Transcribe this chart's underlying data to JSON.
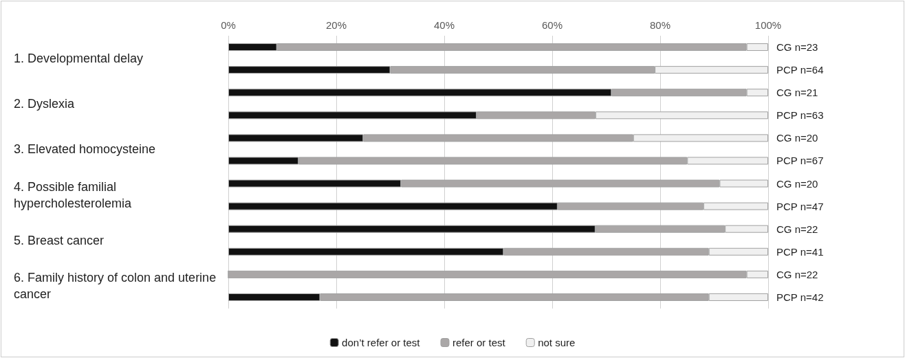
{
  "chart_data": {
    "type": "bar",
    "orientation": "horizontal",
    "stacked": true,
    "categories": [
      "CG n=23",
      "PCP n=64",
      "CG n=21",
      "PCP n=63",
      "CG n=20",
      "PCP n=67",
      "CG n=20",
      "PCP n=47",
      "CG n=22",
      "PCP n=41",
      "CG n=22",
      "PCP n=42"
    ],
    "series": [
      {
        "name": "don’t refer or test",
        "color": "#111111",
        "values": [
          9,
          30,
          71,
          46,
          25,
          13,
          32,
          61,
          68,
          51,
          0,
          17
        ]
      },
      {
        "name": "refer or test",
        "color": "#aaa7a7",
        "values": [
          87,
          49,
          25,
          22,
          50,
          72,
          59,
          27,
          24,
          38,
          96,
          72
        ]
      },
      {
        "name": "not sure",
        "color": "#f0f0f0",
        "values": [
          4,
          21,
          4,
          32,
          25,
          15,
          9,
          12,
          8,
          11,
          4,
          11
        ]
      }
    ],
    "annotations": [
      "1. Developmental delay",
      "2. Dyslexia",
      "3. Elevated homocysteine",
      "4. Possible familial hypercholesterolemia",
      "5. Breast cancer",
      "6. Family history of colon and uterine cancer"
    ],
    "xlim": [
      0,
      100
    ],
    "xticks": [
      {
        "value": 0,
        "label": "0%"
      },
      {
        "value": 20,
        "label": "20%"
      },
      {
        "value": 40,
        "label": "40%"
      },
      {
        "value": 60,
        "label": "60%"
      },
      {
        "value": 80,
        "label": "80%"
      },
      {
        "value": 100,
        "label": "100%"
      }
    ],
    "grid": "x",
    "legend": "bottom"
  }
}
